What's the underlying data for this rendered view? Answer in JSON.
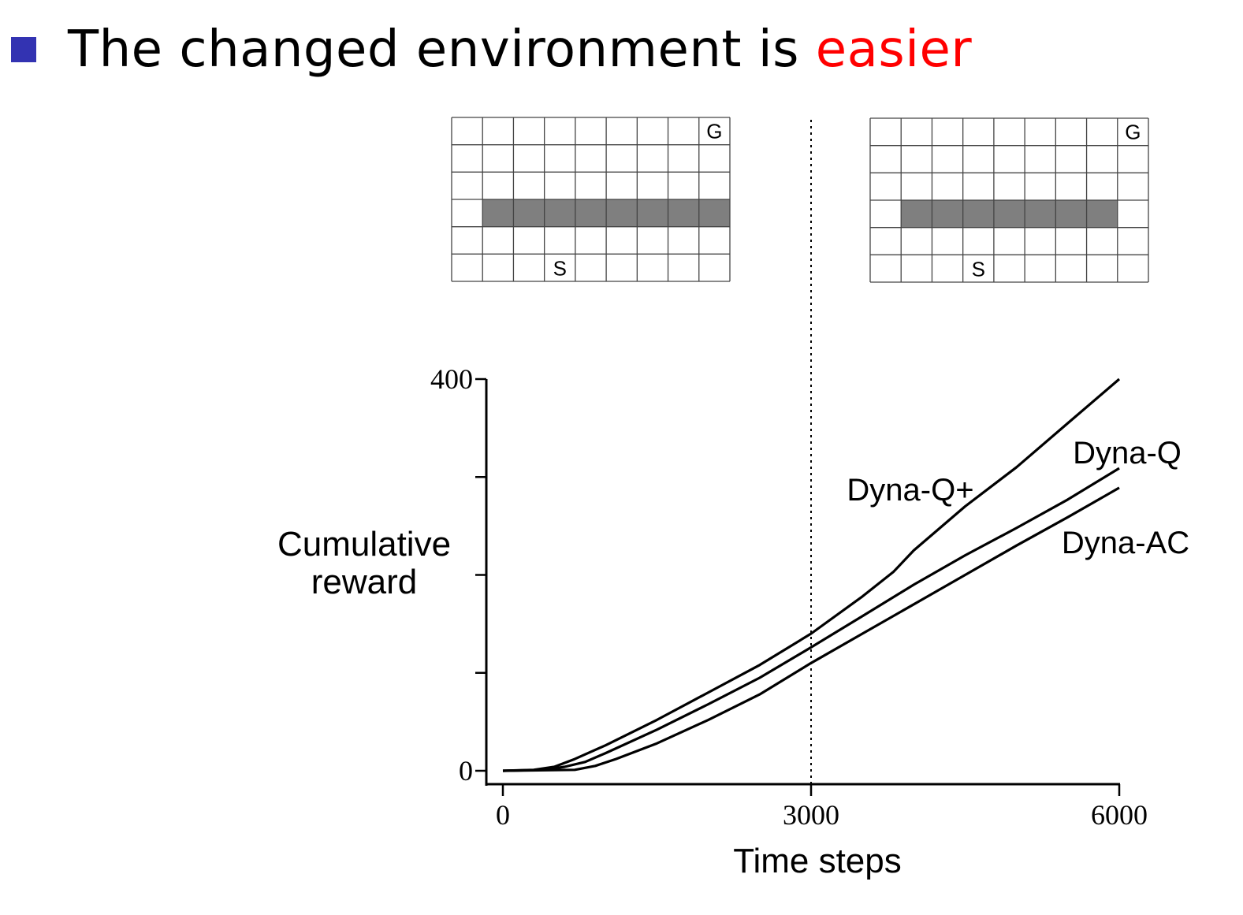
{
  "slide": {
    "title_prefix": "The changed environment is ",
    "title_highlight": "easier",
    "highlight_color": "#ff0000",
    "bullet_color": "#3333b2"
  },
  "gridworlds": [
    {
      "name": "before",
      "rows": 6,
      "cols": 9,
      "goal": {
        "row": 0,
        "col": 8,
        "label": "G"
      },
      "start": {
        "row": 5,
        "col": 3,
        "label": "S"
      },
      "wall": {
        "row": 3,
        "col_start": 1,
        "col_end": 8
      }
    },
    {
      "name": "after",
      "rows": 6,
      "cols": 9,
      "goal": {
        "row": 0,
        "col": 8,
        "label": "G"
      },
      "start": {
        "row": 5,
        "col": 3,
        "label": "S"
      },
      "wall": {
        "row": 3,
        "col_start": 1,
        "col_end": 7
      }
    }
  ],
  "chart_data": {
    "type": "line",
    "xlabel": "Time steps",
    "ylabel": [
      "Cumulative",
      "reward"
    ],
    "xlim": [
      0,
      6000
    ],
    "ylim": [
      0,
      400
    ],
    "xticks": [
      0,
      3000,
      6000
    ],
    "yticks_labeled": [
      0,
      400
    ],
    "yticks_minor": [
      100,
      200,
      300
    ],
    "change_marker_x": 3000,
    "series": [
      {
        "name": "Dyna-Q+",
        "x": [
          0,
          300,
          500,
          700,
          1000,
          1500,
          2000,
          2500,
          3000,
          3500,
          3800,
          4000,
          4500,
          5000,
          5500,
          6000
        ],
        "y": [
          0,
          1,
          4,
          12,
          26,
          52,
          80,
          108,
          140,
          178,
          203,
          225,
          270,
          310,
          355,
          400
        ]
      },
      {
        "name": "Dyna-Q",
        "x": [
          0,
          400,
          600,
          800,
          1000,
          1500,
          2000,
          2500,
          3000,
          3500,
          4000,
          4500,
          5000,
          5500,
          6000
        ],
        "y": [
          0,
          1,
          4,
          9,
          18,
          42,
          68,
          95,
          126,
          158,
          190,
          220,
          248,
          277,
          309
        ]
      },
      {
        "name": "Dyna-AC",
        "x": [
          0,
          700,
          900,
          1100,
          1500,
          2000,
          2500,
          3000,
          3500,
          4000,
          4500,
          5000,
          5500,
          6000
        ],
        "y": [
          0,
          1,
          5,
          12,
          28,
          52,
          78,
          110,
          140,
          170,
          200,
          230,
          259,
          289
        ]
      }
    ]
  }
}
